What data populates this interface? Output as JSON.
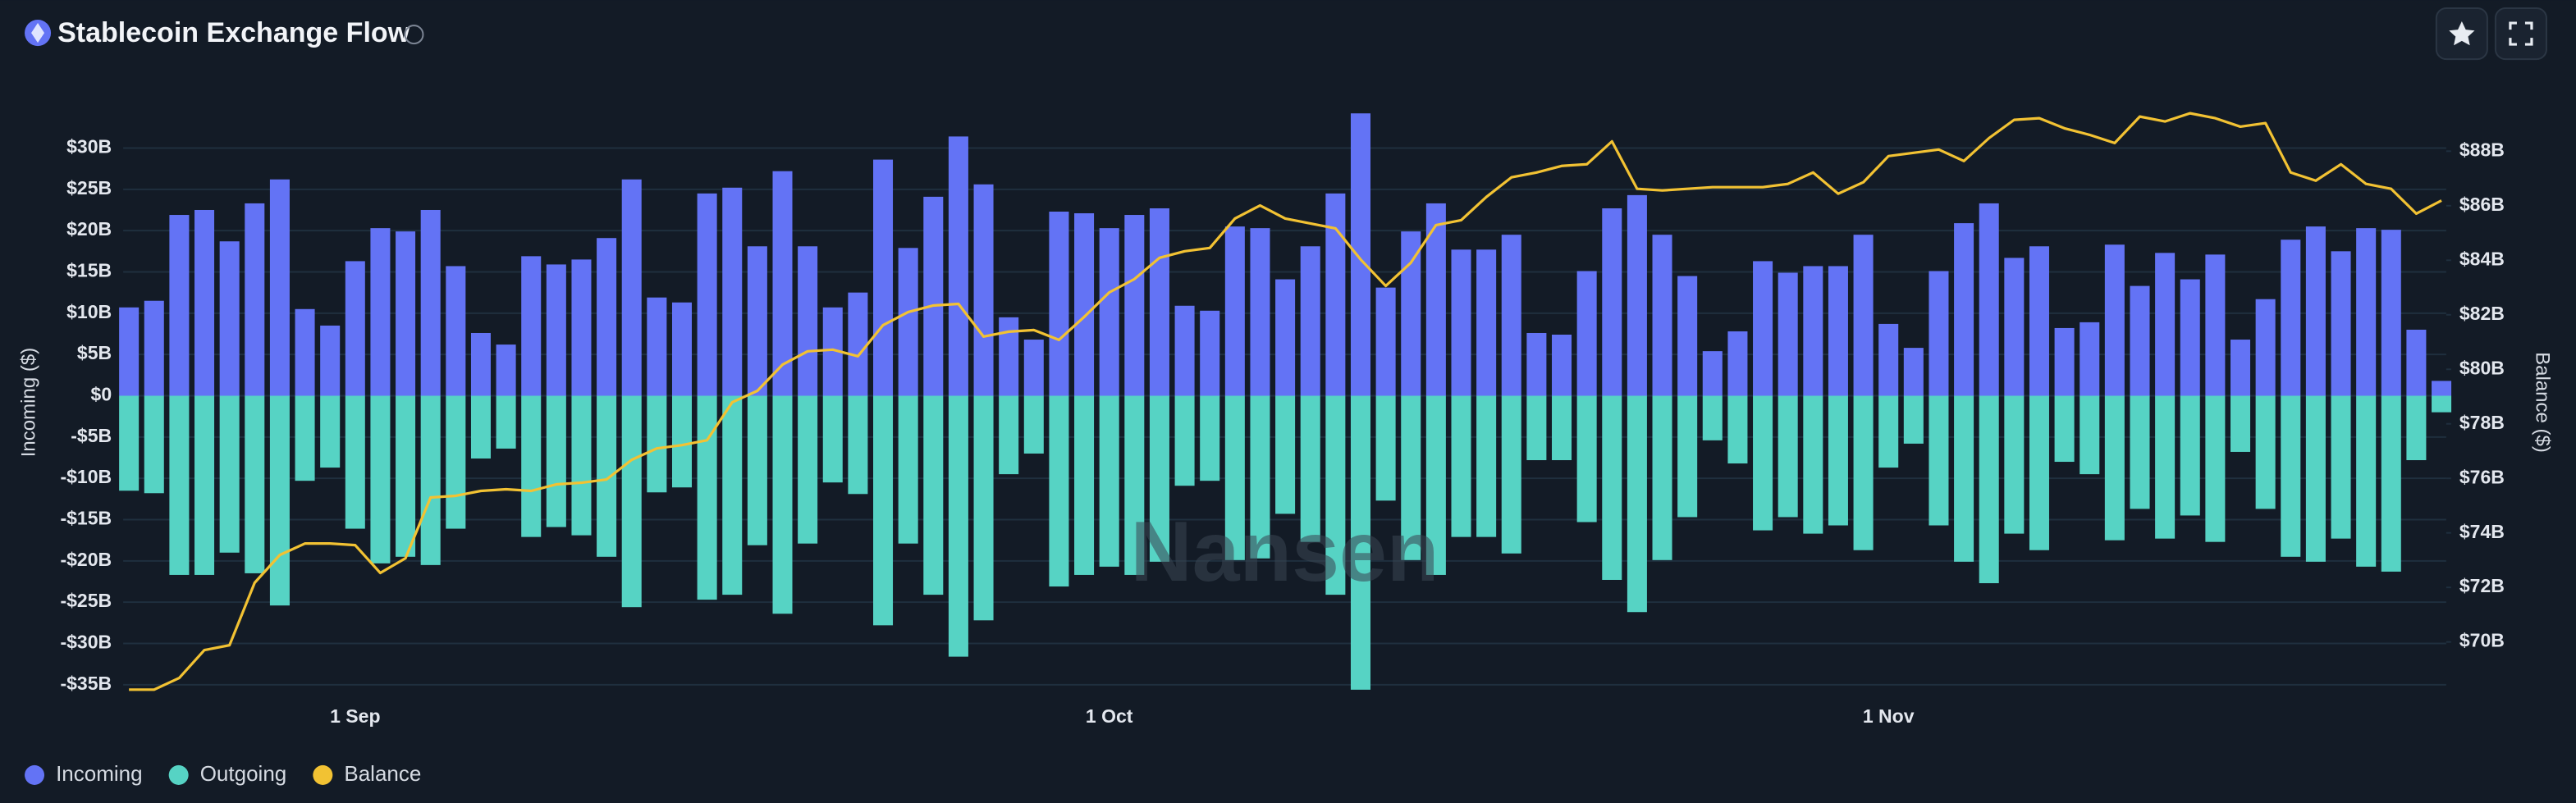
{
  "chart_data": {
    "type": "bar",
    "title": "Stablecoin Exchange Flow",
    "watermark": "Nansen",
    "y_label": "Incoming ($)",
    "y2_label": "Balance ($)",
    "categories": [
      null,
      null,
      null,
      null,
      null,
      null,
      null,
      null,
      null,
      "1 Sep",
      null,
      null,
      null,
      null,
      null,
      null,
      null,
      null,
      null,
      null,
      null,
      null,
      null,
      null,
      null,
      null,
      null,
      null,
      null,
      null,
      null,
      null,
      null,
      null,
      null,
      null,
      null,
      null,
      null,
      "1 Oct",
      null,
      null,
      null,
      null,
      null,
      null,
      null,
      null,
      null,
      null,
      null,
      null,
      null,
      null,
      null,
      null,
      null,
      null,
      null,
      null,
      null,
      null,
      null,
      null,
      null,
      null,
      null,
      null,
      null,
      null,
      "1 Nov",
      null,
      null,
      null,
      null,
      null,
      null,
      null,
      null,
      null,
      null,
      null,
      null,
      null,
      null,
      null,
      null,
      null,
      null,
      null,
      null,
      null,
      null
    ],
    "series": [
      {
        "name": "Incoming",
        "type": "bar",
        "color": "#6373f5",
        "values": [
          10.7,
          11.5,
          21.9,
          22.5,
          18.7,
          23.3,
          26.2,
          10.5,
          8.5,
          16.3,
          20.3,
          19.9,
          22.5,
          15.7,
          7.6,
          6.2,
          16.9,
          15.9,
          16.5,
          19.1,
          26.2,
          11.9,
          11.3,
          24.5,
          25.2,
          18.1,
          27.2,
          18.1,
          10.7,
          12.5,
          28.6,
          17.9,
          24.1,
          31.4,
          25.6,
          9.5,
          6.8,
          22.3,
          22.1,
          20.3,
          21.9,
          22.7,
          10.9,
          10.3,
          20.5,
          20.3,
          14.1,
          18.1,
          24.5,
          34.2,
          13.1,
          19.9,
          23.3,
          17.7,
          17.7,
          19.5,
          7.6,
          7.4,
          15.1,
          22.7,
          24.3,
          19.5,
          14.5,
          5.4,
          7.8,
          16.3,
          14.9,
          15.7,
          15.7,
          19.5,
          8.7,
          5.8,
          15.1,
          20.9,
          23.3,
          16.7,
          18.1,
          8.2,
          8.9,
          18.3,
          13.3,
          17.3,
          14.1,
          17.1,
          6.8,
          11.7,
          18.9,
          20.5,
          17.5,
          20.3,
          20.1,
          8.0,
          1.8
        ]
      },
      {
        "name": "Outgoing",
        "type": "bar",
        "color": "#56d3c4",
        "values": [
          -11.5,
          -11.8,
          -21.7,
          -21.7,
          -19,
          -21.5,
          -25.4,
          -10.3,
          -8.7,
          -16.1,
          -20.3,
          -19.5,
          -20.5,
          -16.1,
          -7.6,
          -6.4,
          -17.1,
          -15.9,
          -16.9,
          -19.5,
          -25.6,
          -11.7,
          -11.1,
          -24.7,
          -24.1,
          -18.1,
          -26.4,
          -17.9,
          -10.5,
          -11.9,
          -27.8,
          -17.9,
          -24.1,
          -31.6,
          -27.2,
          -9.5,
          -7.0,
          -23.1,
          -21.7,
          -20.7,
          -21.7,
          -20.1,
          -10.9,
          -10.3,
          -19.9,
          -19.7,
          -14.3,
          -17.7,
          -24.1,
          -35.6,
          -12.7,
          -19.9,
          -21.7,
          -17.1,
          -17.1,
          -19.1,
          -7.8,
          -7.8,
          -15.3,
          -22.3,
          -26.2,
          -19.9,
          -14.7,
          -5.4,
          -8.2,
          -16.3,
          -14.7,
          -16.7,
          -15.7,
          -18.7,
          -8.7,
          -5.8,
          -15.7,
          -20.1,
          -22.7,
          -16.7,
          -18.7,
          -8.0,
          -9.5,
          -17.5,
          -13.7,
          -17.3,
          -14.5,
          -17.7,
          -6.8,
          -13.7,
          -19.5,
          -20.1,
          -17.3,
          -20.7,
          -21.3,
          -7.8,
          -2.0
        ]
      },
      {
        "name": "Balance",
        "type": "line",
        "axis": "y2",
        "color": "#f2c233",
        "values": [
          68.25,
          68.25,
          68.68,
          69.7,
          69.88,
          72.17,
          73.19,
          73.61,
          73.61,
          73.55,
          72.53,
          73.07,
          75.3,
          75.36,
          75.54,
          75.6,
          75.54,
          75.78,
          75.84,
          75.96,
          76.68,
          77.1,
          77.22,
          77.4,
          78.79,
          79.21,
          80.17,
          80.66,
          80.72,
          80.48,
          81.62,
          82.1,
          82.34,
          82.4,
          81.2,
          81.38,
          81.44,
          81.08,
          81.92,
          82.82,
          83.31,
          84.09,
          84.33,
          84.45,
          85.53,
          86.01,
          85.53,
          85.35,
          85.17,
          84.03,
          83.06,
          83.91,
          85.29,
          85.47,
          86.32,
          87.04,
          87.22,
          87.46,
          87.52,
          88.36,
          86.62,
          86.56,
          86.62,
          86.68,
          86.68,
          86.68,
          86.8,
          87.22,
          86.44,
          86.86,
          87.82,
          87.94,
          88.06,
          87.64,
          88.48,
          89.15,
          89.21,
          88.84,
          88.6,
          88.3,
          89.27,
          89.09,
          89.39,
          89.21,
          88.9,
          89.03,
          87.22,
          86.92,
          87.52,
          86.8,
          86.62,
          85.71,
          86.19
        ]
      }
    ],
    "ylim": [
      -35,
      35
    ],
    "yticks": [
      {
        "value": -35,
        "label": "-$35B"
      },
      {
        "value": -30,
        "label": "-$30B"
      },
      {
        "value": -25,
        "label": "-$25B"
      },
      {
        "value": -20,
        "label": "-$20B"
      },
      {
        "value": -15,
        "label": "-$15B"
      },
      {
        "value": -10,
        "label": "-$10B"
      },
      {
        "value": -5,
        "label": "-$5B"
      },
      {
        "value": 0,
        "label": "$0"
      },
      {
        "value": 5,
        "label": "$5B"
      },
      {
        "value": 10,
        "label": "$10B"
      },
      {
        "value": 15,
        "label": "$15B"
      },
      {
        "value": 20,
        "label": "$20B"
      },
      {
        "value": 25,
        "label": "$25B"
      },
      {
        "value": 30,
        "label": "$30B"
      }
    ],
    "y2lim": [
      68.43,
      89.63
    ],
    "y2ticks": [
      {
        "value": 70,
        "label": "$70B"
      },
      {
        "value": 72,
        "label": "$72B"
      },
      {
        "value": 74,
        "label": "$74B"
      },
      {
        "value": 76,
        "label": "$76B"
      },
      {
        "value": 78,
        "label": "$78B"
      },
      {
        "value": 80,
        "label": "$80B"
      },
      {
        "value": 82,
        "label": "$82B"
      },
      {
        "value": 84,
        "label": "$84B"
      },
      {
        "value": 86,
        "label": "$86B"
      },
      {
        "value": 88,
        "label": "$88B"
      }
    ],
    "grid": true,
    "legend": "bottom-left"
  }
}
